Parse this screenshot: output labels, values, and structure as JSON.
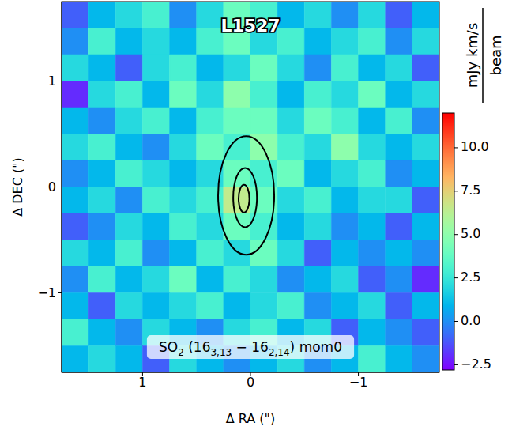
{
  "chart_data": {
    "type": "heatmap",
    "title": "L1527",
    "xlabel": "Δ RA (\")",
    "ylabel": "Δ DEC (\")",
    "xlim": [
      1.75,
      -1.75
    ],
    "ylim": [
      -1.75,
      1.75
    ],
    "xticks": [
      1,
      0,
      {
        "value": -1,
        "label": "−1"
      }
    ],
    "yticks": [
      {
        "value": -1,
        "label": "−1"
      },
      0,
      1
    ],
    "x_centers": [
      1.625,
      1.375,
      1.125,
      0.875,
      0.625,
      0.375,
      0.125,
      -0.125,
      -0.375,
      -0.625,
      -0.875,
      -1.125,
      -1.375,
      -1.625
    ],
    "y_centers": [
      1.625,
      1.375,
      1.125,
      0.875,
      0.625,
      0.375,
      0.125,
      -0.125,
      -0.375,
      -0.625,
      -0.875,
      -1.125,
      -1.375,
      -1.625
    ],
    "cells": [
      [
        -1,
        1,
        2,
        3,
        0,
        2,
        4,
        3,
        1,
        2,
        0,
        2,
        -1,
        1
      ],
      [
        0,
        3,
        1,
        2,
        1,
        3,
        4,
        2,
        3,
        1,
        2,
        3,
        0,
        2
      ],
      [
        2,
        1,
        -1,
        2,
        3,
        1,
        2,
        4,
        2,
        0,
        3,
        1,
        2,
        -1
      ],
      [
        -2,
        2,
        3,
        1,
        4,
        2,
        5,
        3,
        1,
        3,
        2,
        4,
        1,
        2
      ],
      [
        1,
        0,
        2,
        3,
        1,
        3,
        4,
        4,
        2,
        4,
        3,
        1,
        3,
        0
      ],
      [
        2,
        3,
        1,
        0,
        2,
        4,
        3,
        5,
        3,
        2,
        5,
        2,
        1,
        2
      ],
      [
        0,
        1,
        3,
        2,
        1,
        2,
        4,
        3,
        4,
        1,
        2,
        3,
        0,
        1
      ],
      [
        1,
        2,
        0,
        3,
        2,
        3,
        6.5,
        4,
        2,
        3,
        1,
        2,
        2,
        -1
      ],
      [
        -1,
        0,
        2,
        1,
        3,
        2,
        4,
        3,
        1,
        2,
        0,
        1,
        -1,
        1
      ],
      [
        2,
        1,
        3,
        0,
        1,
        3,
        2,
        4,
        2,
        -1,
        1,
        0,
        1,
        0
      ],
      [
        0,
        3,
        1,
        2,
        4,
        1,
        3,
        2,
        0,
        1,
        2,
        -1,
        0,
        -2
      ],
      [
        1,
        -1,
        2,
        1,
        2,
        3,
        1,
        2,
        3,
        0,
        1,
        2,
        -1,
        1
      ],
      [
        3,
        1,
        0,
        2,
        1,
        0,
        2,
        3,
        1,
        2,
        -1,
        1,
        0,
        -1
      ],
      [
        1,
        2,
        1,
        -1,
        2,
        1,
        0,
        1,
        2,
        0,
        1,
        3,
        1,
        0
      ]
    ],
    "colorbar": {
      "range": [
        -2.8,
        12
      ],
      "ticks": [
        {
          "value": 10,
          "label": "10.0"
        },
        {
          "value": 7.5,
          "label": "7.5"
        },
        {
          "value": 5,
          "label": "5.0"
        },
        {
          "value": 2.5,
          "label": "2.5"
        },
        {
          "value": 0,
          "label": "0.0"
        },
        {
          "value": -2.5,
          "label": "−2.5"
        }
      ],
      "label": [
        "mJy km/s",
        "beam"
      ]
    },
    "contours": [
      {
        "x": 0.04,
        "y": -0.08,
        "rx": 0.26,
        "ry": 0.56
      },
      {
        "x": 0.05,
        "y": -0.1,
        "rx": 0.11,
        "ry": 0.28
      },
      {
        "x": 0.06,
        "y": -0.11,
        "rx": 0.05,
        "ry": 0.13
      }
    ],
    "annotation": [
      "SO",
      "2",
      " (16",
      "3,13",
      " − 16",
      "2,14",
      ") mom0"
    ]
  }
}
